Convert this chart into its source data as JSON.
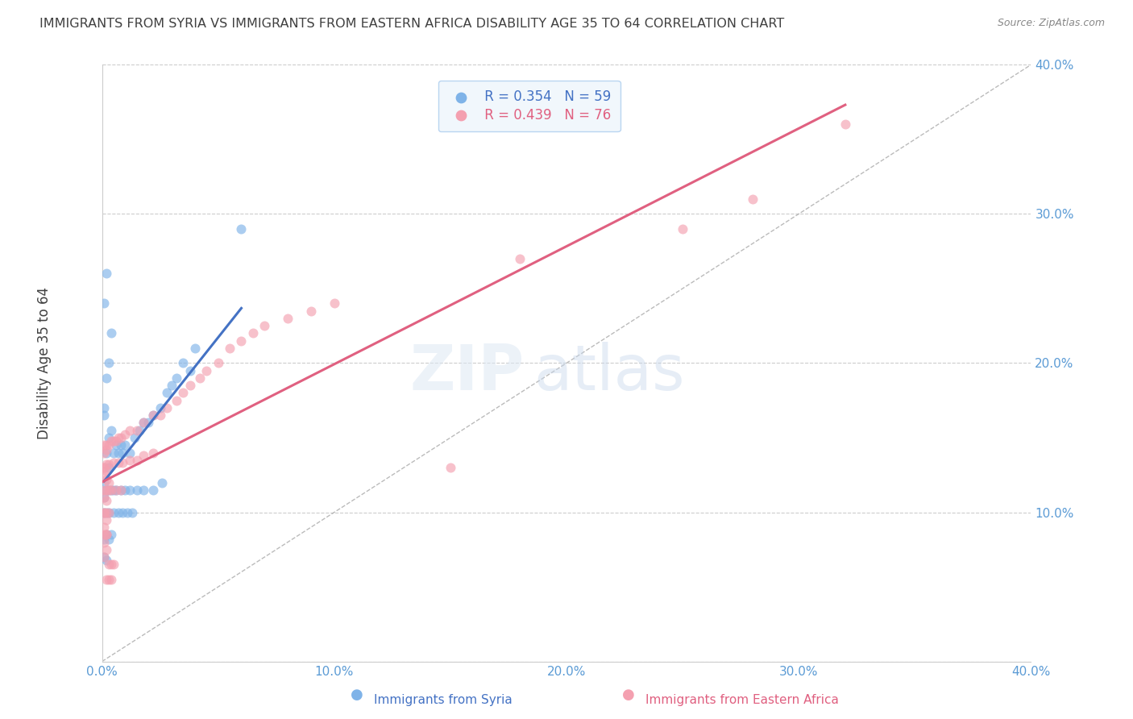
{
  "title": "IMMIGRANTS FROM SYRIA VS IMMIGRANTS FROM EASTERN AFRICA DISABILITY AGE 35 TO 64 CORRELATION CHART",
  "source": "Source: ZipAtlas.com",
  "ylabel": "Disability Age 35 to 64",
  "xlim": [
    0.0,
    0.4
  ],
  "ylim": [
    0.0,
    0.4
  ],
  "xticks": [
    0.0,
    0.1,
    0.2,
    0.3,
    0.4
  ],
  "yticks": [
    0.0,
    0.1,
    0.2,
    0.3,
    0.4
  ],
  "xticklabels": [
    "0.0%",
    "10.0%",
    "20.0%",
    "30.0%",
    "40.0%"
  ],
  "yticklabels": [
    "",
    "10.0%",
    "20.0%",
    "30.0%",
    "40.0%"
  ],
  "syria_R": 0.354,
  "syria_N": 59,
  "eastern_africa_R": 0.439,
  "eastern_africa_N": 76,
  "syria_color": "#7fb3e8",
  "eastern_africa_color": "#f4a0b0",
  "syria_line_color": "#4472c4",
  "eastern_africa_line_color": "#e06080",
  "background_color": "#ffffff",
  "grid_color": "#cccccc",
  "tick_color": "#5b9bd5",
  "title_color": "#404040",
  "syria_x": [
    0.001,
    0.002,
    0.003,
    0.004,
    0.005,
    0.006,
    0.007,
    0.008,
    0.009,
    0.01,
    0.012,
    0.014,
    0.016,
    0.018,
    0.02,
    0.022,
    0.025,
    0.028,
    0.03,
    0.032,
    0.035,
    0.038,
    0.04,
    0.001,
    0.002,
    0.003,
    0.004,
    0.005,
    0.006,
    0.008,
    0.01,
    0.012,
    0.015,
    0.018,
    0.022,
    0.026,
    0.001,
    0.002,
    0.003,
    0.005,
    0.007,
    0.009,
    0.011,
    0.013,
    0.002,
    0.004,
    0.001,
    0.003,
    0.001,
    0.002,
    0.06,
    0.001,
    0.002,
    0.003,
    0.004,
    0.001,
    0.002,
    0.003,
    0.001
  ],
  "syria_y": [
    0.12,
    0.14,
    0.13,
    0.155,
    0.14,
    0.145,
    0.14,
    0.145,
    0.14,
    0.145,
    0.14,
    0.15,
    0.155,
    0.16,
    0.16,
    0.165,
    0.17,
    0.18,
    0.185,
    0.19,
    0.2,
    0.195,
    0.21,
    0.11,
    0.115,
    0.115,
    0.115,
    0.115,
    0.115,
    0.115,
    0.115,
    0.115,
    0.115,
    0.115,
    0.115,
    0.12,
    0.1,
    0.1,
    0.1,
    0.1,
    0.1,
    0.1,
    0.1,
    0.1,
    0.085,
    0.085,
    0.082,
    0.082,
    0.07,
    0.068,
    0.29,
    0.24,
    0.26,
    0.15,
    0.22,
    0.17,
    0.19,
    0.2,
    0.165
  ],
  "eastern_africa_x": [
    0.001,
    0.002,
    0.003,
    0.004,
    0.005,
    0.006,
    0.007,
    0.008,
    0.01,
    0.012,
    0.015,
    0.018,
    0.022,
    0.025,
    0.028,
    0.032,
    0.035,
    0.038,
    0.042,
    0.045,
    0.05,
    0.055,
    0.06,
    0.065,
    0.07,
    0.08,
    0.09,
    0.1,
    0.001,
    0.002,
    0.003,
    0.005,
    0.007,
    0.009,
    0.012,
    0.015,
    0.018,
    0.022,
    0.001,
    0.002,
    0.003,
    0.004,
    0.006,
    0.008,
    0.001,
    0.002,
    0.003,
    0.001,
    0.002,
    0.001,
    0.003,
    0.004,
    0.005,
    0.002,
    0.003,
    0.004,
    0.001,
    0.002,
    0.001,
    0.002,
    0.003,
    0.001,
    0.002,
    0.001,
    0.002,
    0.001,
    0.002,
    0.001,
    0.002,
    0.001,
    0.002,
    0.18,
    0.25,
    0.32,
    0.28,
    0.15
  ],
  "eastern_africa_y": [
    0.14,
    0.145,
    0.145,
    0.148,
    0.148,
    0.148,
    0.15,
    0.15,
    0.152,
    0.155,
    0.155,
    0.16,
    0.165,
    0.165,
    0.17,
    0.175,
    0.18,
    0.185,
    0.19,
    0.195,
    0.2,
    0.21,
    0.215,
    0.22,
    0.225,
    0.23,
    0.235,
    0.24,
    0.13,
    0.132,
    0.132,
    0.133,
    0.133,
    0.133,
    0.135,
    0.135,
    0.138,
    0.14,
    0.115,
    0.115,
    0.115,
    0.115,
    0.115,
    0.115,
    0.1,
    0.1,
    0.1,
    0.085,
    0.085,
    0.07,
    0.065,
    0.065,
    0.065,
    0.055,
    0.055,
    0.055,
    0.13,
    0.128,
    0.125,
    0.122,
    0.12,
    0.11,
    0.108,
    0.1,
    0.095,
    0.09,
    0.085,
    0.08,
    0.075,
    0.145,
    0.142,
    0.27,
    0.29,
    0.36,
    0.31,
    0.13
  ]
}
